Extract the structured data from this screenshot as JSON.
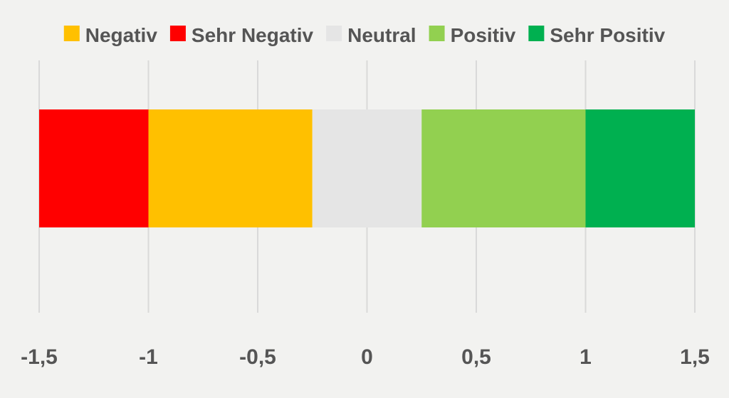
{
  "chart_data": {
    "type": "bar",
    "orientation": "horizontal-stacked-range",
    "xlim": [
      -1.5,
      1.5
    ],
    "xticks": [
      "-1,5",
      "-1",
      "-0,5",
      "0",
      "0,5",
      "1",
      "1,5"
    ],
    "xtick_values": [
      -1.5,
      -1,
      -0.5,
      0,
      0.5,
      1,
      1.5
    ],
    "grid": true,
    "legend_position": "top",
    "legend": [
      {
        "label": "Negativ",
        "color": "#ffc000"
      },
      {
        "label": "Sehr Negativ",
        "color": "#ff0000"
      },
      {
        "label": "Neutral",
        "color": "#e5e5e5"
      },
      {
        "label": "Positiv",
        "color": "#92d050"
      },
      {
        "label": "Sehr Positiv",
        "color": "#00b050"
      }
    ],
    "segments": [
      {
        "name": "Sehr Negativ",
        "start": -1.5,
        "end": -1.0,
        "color": "#ff0000"
      },
      {
        "name": "Negativ",
        "start": -1.0,
        "end": -0.25,
        "color": "#ffc000"
      },
      {
        "name": "Neutral",
        "start": -0.25,
        "end": 0.25,
        "color": "#e5e5e5"
      },
      {
        "name": "Positiv",
        "start": 0.25,
        "end": 1.0,
        "color": "#92d050"
      },
      {
        "name": "Sehr Positiv",
        "start": 1.0,
        "end": 1.5,
        "color": "#00b050"
      }
    ]
  }
}
